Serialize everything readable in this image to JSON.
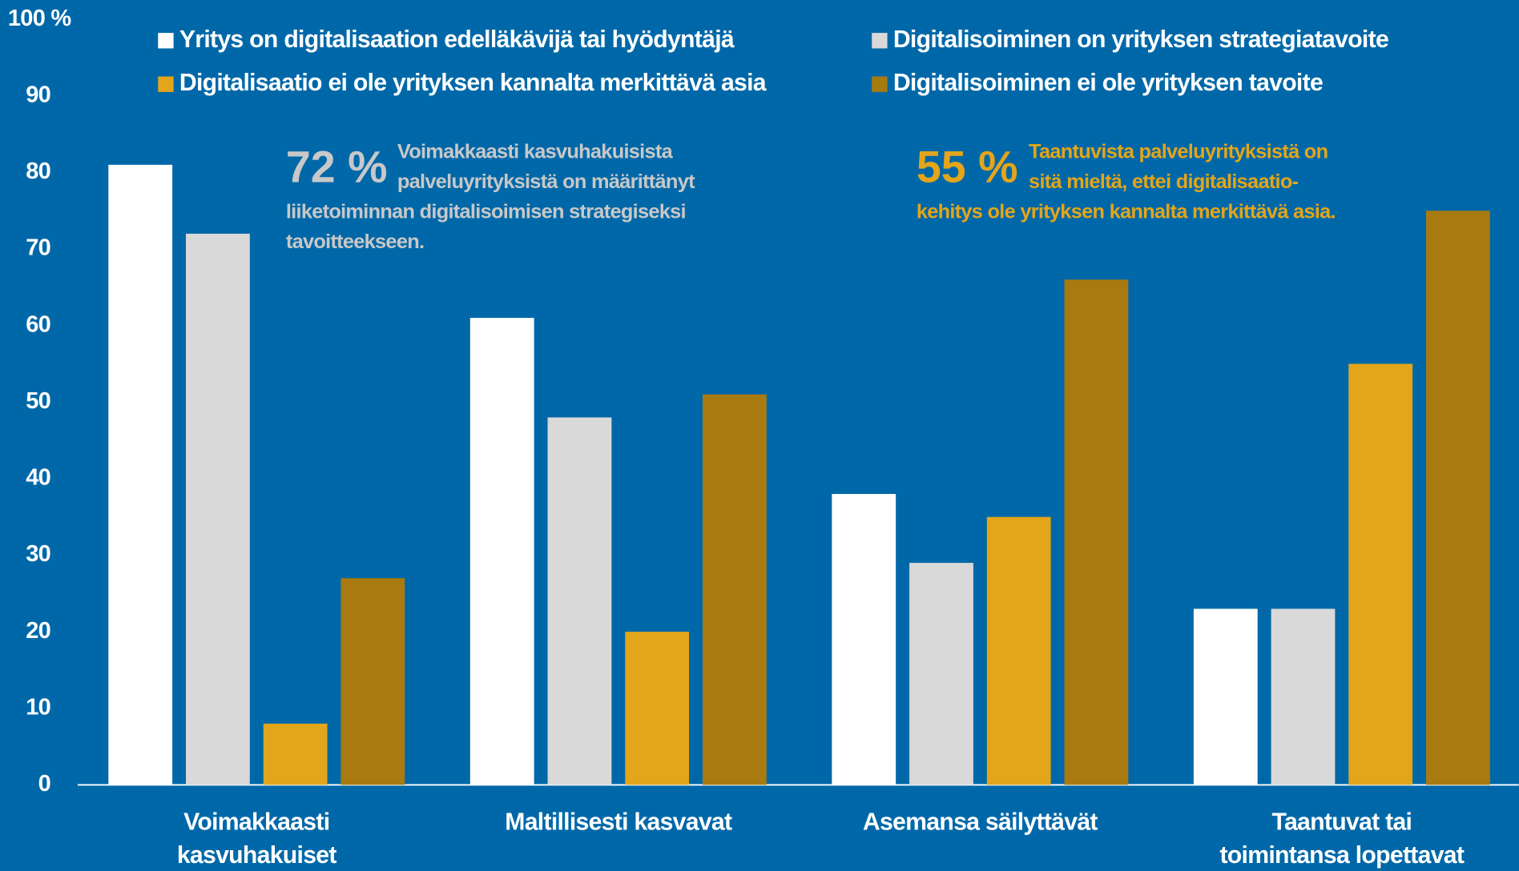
{
  "chart_data": {
    "type": "bar",
    "categories": [
      [
        "Voimakkaasti",
        "kasvuhakuiset"
      ],
      [
        "Maltillisesti kasvavat"
      ],
      [
        "Asemansa säilyttävät"
      ],
      [
        "Taantuvat tai",
        "toimintansa lopettavat"
      ]
    ],
    "series": [
      {
        "name": "Yritys on digitalisaation edelläkävijä tai hyödyntäjä",
        "color": "#ffffff",
        "values": [
          81,
          61,
          38,
          23
        ]
      },
      {
        "name": "Digitalisoiminen on yrityksen strategiatavoite",
        "color": "#d9d9d9",
        "values": [
          72,
          48,
          29,
          23
        ]
      },
      {
        "name": "Digitalisaatio ei ole yrityksen kannalta merkittävä asia",
        "color": "#e3a51a",
        "values": [
          8,
          20,
          35,
          55
        ]
      },
      {
        "name": "Digitalisoiminen ei ole yrityksen tavoite",
        "color": "#a87a10",
        "values": [
          27,
          51,
          66,
          75
        ]
      }
    ],
    "ylim": [
      0,
      100
    ],
    "yticks": [
      0,
      10,
      20,
      30,
      40,
      50,
      60,
      70,
      80,
      90,
      {
        "value": 100,
        "label": "100 %"
      }
    ],
    "annotations": [
      {
        "figure": "72 %",
        "color": "#c8c8c8",
        "lines": [
          "Voimakkaasti kasvuhakuisista",
          "palveluyrityksistä on määrittänyt",
          "liiketoiminnan digitalisoimisen strategiseksi",
          "tavoitteekseen."
        ]
      },
      {
        "figure": "55 %",
        "color": "#e3a51a",
        "lines": [
          "Taantuvista palveluyrityksistä on",
          "sitä mieltä, ettei digitalisaatio-",
          "kehitys ole yrityksen kannalta merkittävä asia."
        ]
      }
    ]
  }
}
